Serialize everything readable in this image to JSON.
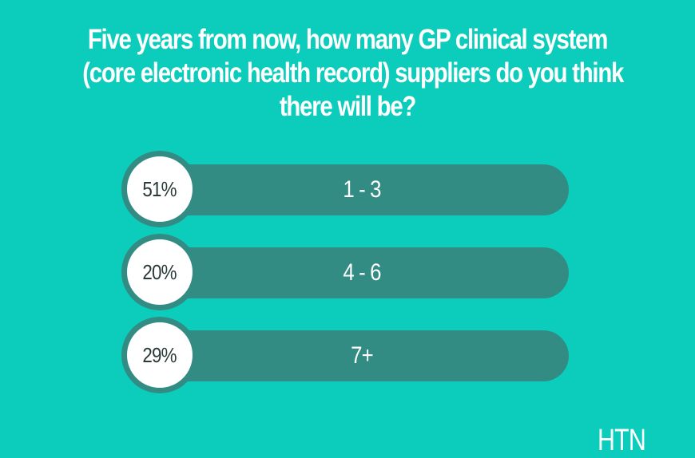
{
  "title_lines": [
    "Five years from now, how many GP clinical system",
    "(core electronic health record) suppliers do you think",
    "there will be?"
  ],
  "logo": "HTN",
  "colors": {
    "background": "#0ccdbb",
    "bar": "#338c83",
    "circle": "#ffffff"
  },
  "chart_data": {
    "type": "bar",
    "categories": [
      "1 - 3",
      "4 - 6",
      "7+"
    ],
    "values": [
      51,
      20,
      29
    ],
    "value_labels": [
      "51%",
      "20%",
      "29%"
    ],
    "title": "Five years from now, how many GP clinical system (core electronic health record) suppliers do you think there will be?"
  }
}
